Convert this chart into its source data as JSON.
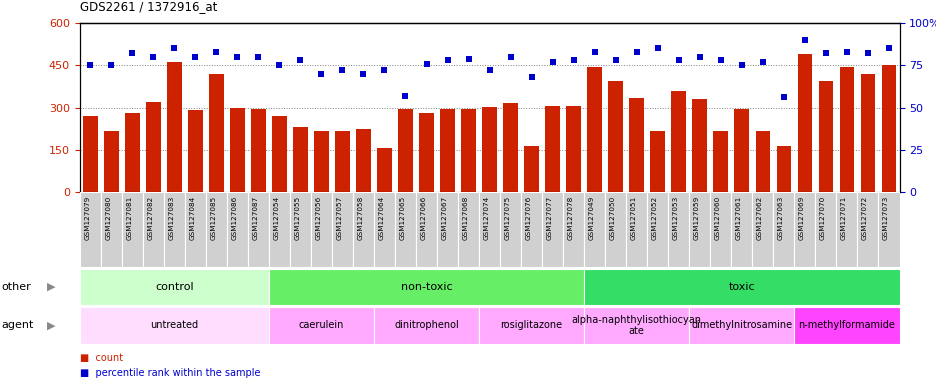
{
  "title": "GDS2261 / 1372916_at",
  "samples": [
    "GSM127079",
    "GSM127080",
    "GSM127081",
    "GSM127082",
    "GSM127083",
    "GSM127084",
    "GSM127085",
    "GSM127086",
    "GSM127087",
    "GSM127054",
    "GSM127055",
    "GSM127056",
    "GSM127057",
    "GSM127058",
    "GSM127064",
    "GSM127065",
    "GSM127066",
    "GSM127067",
    "GSM127068",
    "GSM127074",
    "GSM127075",
    "GSM127076",
    "GSM127077",
    "GSM127078",
    "GSM127049",
    "GSM127050",
    "GSM127051",
    "GSM127052",
    "GSM127053",
    "GSM127059",
    "GSM127060",
    "GSM127061",
    "GSM127062",
    "GSM127063",
    "GSM127069",
    "GSM127070",
    "GSM127071",
    "GSM127072",
    "GSM127073"
  ],
  "counts": [
    270,
    215,
    280,
    318,
    460,
    290,
    420,
    300,
    295,
    270,
    230,
    218,
    215,
    225,
    155,
    295,
    280,
    293,
    295,
    302,
    315,
    165,
    305,
    305,
    445,
    395,
    335,
    215,
    360,
    330,
    215,
    295,
    215,
    162,
    490,
    395,
    445,
    418,
    452
  ],
  "percentiles": [
    75,
    75,
    82,
    80,
    85,
    80,
    83,
    80,
    80,
    75,
    78,
    70,
    72,
    70,
    72,
    57,
    76,
    78,
    79,
    72,
    80,
    68,
    77,
    78,
    83,
    78,
    83,
    85,
    78,
    80,
    78,
    75,
    77,
    56,
    90,
    82,
    83,
    82,
    85
  ],
  "ylim_left": [
    0,
    600
  ],
  "ylim_right": [
    0,
    100
  ],
  "yticks_left": [
    0,
    150,
    300,
    450,
    600
  ],
  "yticks_right": [
    0,
    25,
    50,
    75,
    100
  ],
  "bar_color": "#cc2200",
  "dot_color": "#0000cc",
  "xtick_bg": "#d0d0d0",
  "groups_other": [
    {
      "label": "control",
      "start": 0,
      "end": 9,
      "color": "#ccffcc"
    },
    {
      "label": "non-toxic",
      "start": 9,
      "end": 24,
      "color": "#66ee66"
    },
    {
      "label": "toxic",
      "start": 24,
      "end": 39,
      "color": "#33dd66"
    }
  ],
  "groups_agent": [
    {
      "label": "untreated",
      "start": 0,
      "end": 9,
      "color": "#ffddff"
    },
    {
      "label": "caerulein",
      "start": 9,
      "end": 14,
      "color": "#ffaaff"
    },
    {
      "label": "dinitrophenol",
      "start": 14,
      "end": 19,
      "color": "#ffaaff"
    },
    {
      "label": "rosiglitazone",
      "start": 19,
      "end": 24,
      "color": "#ffaaff"
    },
    {
      "label": "alpha-naphthylisothiocyan\nate",
      "start": 24,
      "end": 29,
      "color": "#ffaaff"
    },
    {
      "label": "dimethylnitrosamine",
      "start": 29,
      "end": 34,
      "color": "#ffaaff"
    },
    {
      "label": "n-methylformamide",
      "start": 34,
      "end": 39,
      "color": "#ff44ff"
    }
  ],
  "legend_count_color": "#cc2200",
  "legend_pct_color": "#0000cc"
}
